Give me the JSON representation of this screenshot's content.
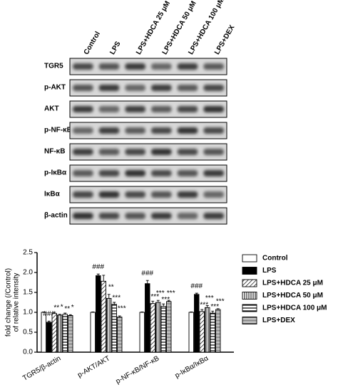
{
  "blot": {
    "lanes": [
      "Control",
      "LPS",
      "LPS+HDCA 25 μM",
      "LPS+HDCA 50 μM",
      "LPS+HDCA 100 μM",
      "LPS+DEX"
    ],
    "rows": [
      "TGR5",
      "p-AKT",
      "AKT",
      "p-NF-κB",
      "NF-κB",
      "p-IκBα",
      "IκBα",
      "β-actin"
    ]
  },
  "chart_data": {
    "type": "bar",
    "ylabel": [
      "fold change (/Control)",
      "of relative intensity"
    ],
    "categories": [
      "TGR5/β-actin",
      "p-AKT/AKT",
      "p-NF-κB/NF-κB",
      "p-IκBα/IκBα"
    ],
    "ylim": [
      0,
      2.5
    ],
    "yticks": [
      {
        "value": 0,
        "label": "0.0"
      },
      0.5,
      {
        "value": 1,
        "label": "1.0"
      },
      1.5,
      {
        "value": 2,
        "label": "2.0"
      },
      2.5
    ],
    "series": [
      {
        "name": "Control",
        "color": "#000000",
        "pattern": "none",
        "values": [
          1,
          1,
          1,
          1
        ],
        "errors": [
          0.01,
          0.01,
          0.01,
          0.01
        ],
        "labels": [
          null,
          null,
          null,
          null
        ]
      },
      {
        "name": "LPS",
        "color": "#000000",
        "pattern": "solid",
        "values": [
          0.75,
          1.92,
          1.72,
          1.45
        ],
        "errors": [
          0.03,
          0.04,
          0.08,
          0.03
        ],
        "labels": [
          "###",
          "###",
          "###",
          "###"
        ]
      },
      {
        "name": "LPS+HDCA 25 μM",
        "color": "#000000",
        "pattern": "diagonal",
        "values": [
          0.97,
          1.78,
          1.22,
          1.02
        ],
        "errors": [
          0.03,
          0.15,
          0.06,
          0.05
        ],
        "labels": [
          "**",
          null,
          "***",
          "***"
        ]
      },
      {
        "name": "LPS+HDCA 50 μM",
        "color": "#000000",
        "pattern": "vertical",
        "values": [
          0.93,
          1.35,
          1.25,
          1.12
        ],
        "errors": [
          0.02,
          0.1,
          0.05,
          0.05
        ],
        "labels": [
          "*",
          "**",
          "***",
          "***"
        ]
      },
      {
        "name": "LPS+HDCA 100 μM",
        "color": "#000000",
        "pattern": "horizontal",
        "values": [
          0.95,
          1.2,
          1.15,
          0.98
        ],
        "errors": [
          0.03,
          0.05,
          0.06,
          0.05
        ],
        "labels": [
          "**",
          "***",
          "***",
          "***"
        ]
      },
      {
        "name": "LPS+DEX",
        "color": "#000000",
        "pattern": "dense",
        "values": [
          0.92,
          0.88,
          1.27,
          1.07
        ],
        "errors": [
          0.02,
          0.03,
          0.03,
          0.02
        ],
        "labels": [
          "*",
          "***",
          "***",
          "***"
        ]
      }
    ]
  }
}
